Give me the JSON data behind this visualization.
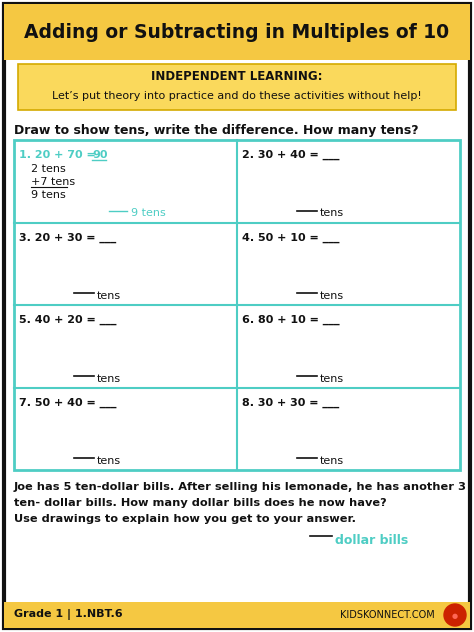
{
  "title": "Adding or Subtracting in Multiples of 10",
  "title_bg": "#F5C842",
  "independent_label": "INDEPENDENT LEARNING:",
  "independent_sub": "Let’s put theory into practice and do these activities without help!",
  "independent_bg": "#F5D76E",
  "instruction": "Draw to show tens, write the difference. How many tens?",
  "cell1_header_prefix": "1. 20 + 70 = ",
  "cell1_header_answer": "90",
  "cell1_body": [
    "2 tens",
    "+7 tens",
    "9 tens"
  ],
  "cell1_footer": "9 tens",
  "grid_color": "#4ECDC4",
  "border_color": "#222222",
  "bg_color": "#FFFFFF",
  "accent_color": "#4ECDC4",
  "footer_text": "Grade 1 | 1.NBT.6",
  "footer_right": "KIDSKONNECT.COM",
  "footer_bg": "#F5C842",
  "word_problem_line1": "Joe has 5 ten-dollar bills. After selling his lemonade, he has another 3",
  "word_problem_line2": "ten- dollar bills. How many dollar bills does he now have?",
  "word_problem_line3": "Use drawings to explain how you get to your answer.",
  "dollar_bills_label": "dollar bills",
  "problems": [
    "1. 20 + 70 = ___",
    "2. 30 + 40 = ___",
    "3. 20 + 30 = ___",
    "4. 50 + 10 = ___",
    "5. 40 + 20 = ___",
    "6. 80 + 10 = ___",
    "7. 50 + 40 = ___",
    "8. 30 + 30 = ___"
  ]
}
